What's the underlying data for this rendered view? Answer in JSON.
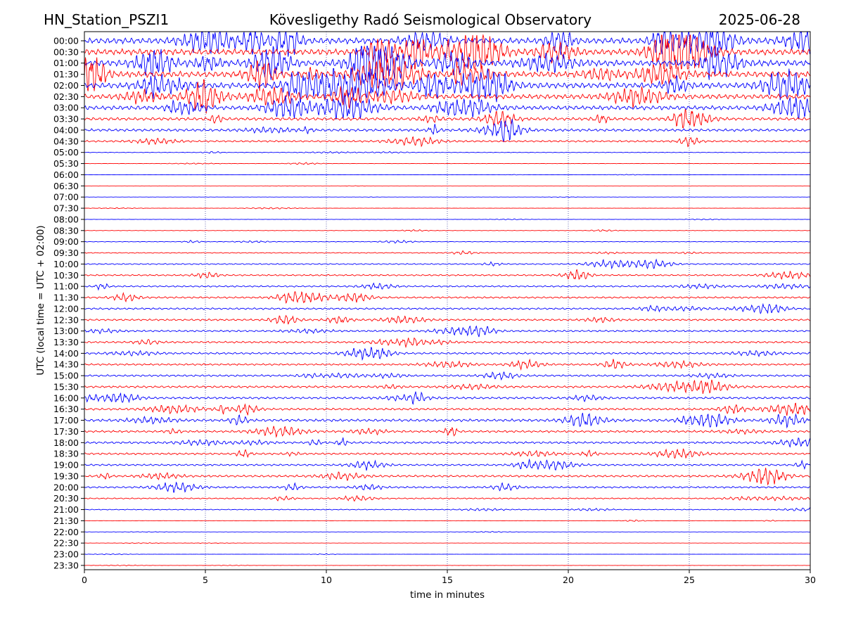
{
  "header": {
    "station": "HN_Station_PSZI1",
    "observatory": "Kövesligethy Radó Seismological Observatory",
    "date": "2025-06-28"
  },
  "chart_data": {
    "type": "line",
    "title": "Kövesligethy Radó Seismological Observatory",
    "xlabel": "time in minutes",
    "ylabel": "UTC (local time = UTC + 02:00)",
    "xlim": [
      0,
      30
    ],
    "x_ticks": [
      "0",
      "5",
      "10",
      "15",
      "20",
      "25",
      "30"
    ],
    "x_tick_values": [
      0,
      5,
      10,
      15,
      20,
      25,
      30
    ],
    "grid": "vertical dotted lines at 5-minute intervals",
    "trace_colors": [
      "#0000ff",
      "#ff0000"
    ],
    "trace_color_rule": "alternating: blue on the hour, red on the half hour",
    "row_labels": [
      "00:00",
      "00:30",
      "01:00",
      "01:30",
      "02:00",
      "02:30",
      "03:00",
      "03:30",
      "04:00",
      "04:30",
      "05:00",
      "05:30",
      "06:00",
      "06:30",
      "07:00",
      "07:30",
      "08:00",
      "08:30",
      "09:00",
      "09:30",
      "10:00",
      "10:30",
      "11:00",
      "11:30",
      "12:00",
      "12:30",
      "13:00",
      "13:30",
      "14:00",
      "14:30",
      "15:00",
      "15:30",
      "16:00",
      "16:30",
      "17:00",
      "17:30",
      "18:00",
      "18:30",
      "19:00",
      "19:30",
      "20:00",
      "20:30",
      "21:00",
      "21:30",
      "22:00",
      "22:30",
      "23:00",
      "23:30"
    ],
    "relative_activity": [
      1.0,
      1.0,
      1.0,
      1.0,
      0.95,
      0.8,
      0.7,
      0.5,
      0.45,
      0.3,
      0.1,
      0.06,
      0.03,
      0.02,
      0.03,
      0.05,
      0.05,
      0.06,
      0.1,
      0.14,
      0.2,
      0.24,
      0.26,
      0.3,
      0.3,
      0.3,
      0.3,
      0.3,
      0.32,
      0.3,
      0.32,
      0.35,
      0.35,
      0.35,
      0.45,
      0.35,
      0.35,
      0.32,
      0.3,
      0.35,
      0.3,
      0.2,
      0.14,
      0.06,
      0.04,
      0.03,
      0.03,
      0.03
    ]
  }
}
